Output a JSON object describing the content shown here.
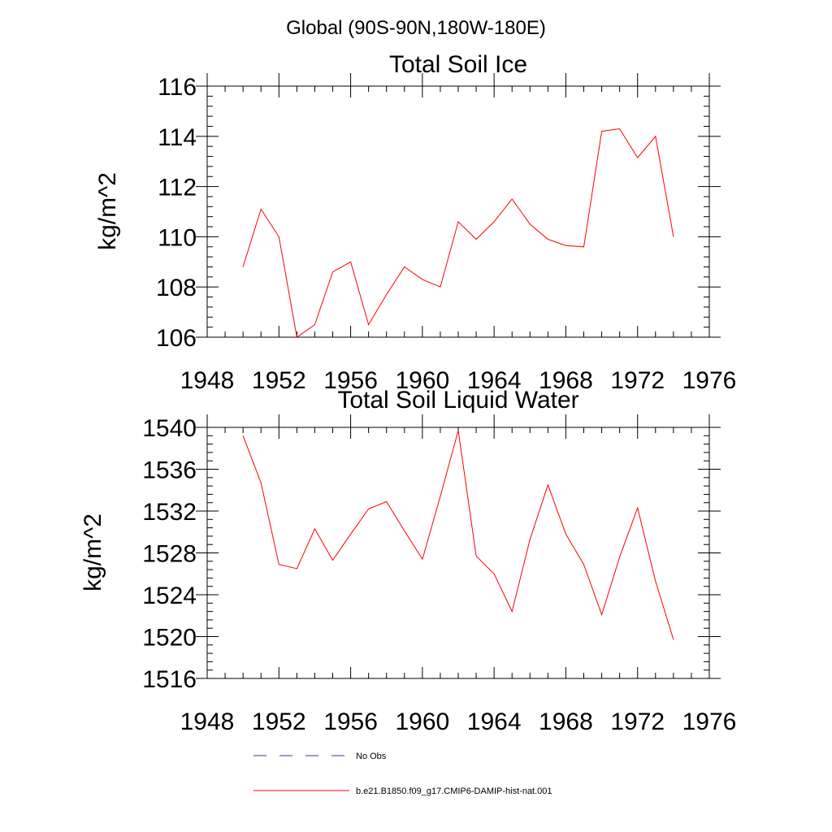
{
  "figure": {
    "suptitle": "Global (90S-90N,180W-180E)"
  },
  "chart_data": [
    {
      "type": "line",
      "title": "Total Soil Ice",
      "xlabel": "",
      "ylabel": "kg/m^2",
      "xlim": [
        1948,
        1976
      ],
      "ylim": [
        106,
        116
      ],
      "xticks": [
        1948,
        1952,
        1956,
        1960,
        1964,
        1968,
        1972,
        1976
      ],
      "yticks": [
        106,
        108,
        110,
        112,
        114,
        116
      ],
      "grid": false,
      "series": [
        {
          "name": "b.e21.B1850.f09_g17.CMIP6-DAMIP-hist-nat.001",
          "color": "#ff0000",
          "x": [
            1950,
            1951,
            1952,
            1953,
            1954,
            1955,
            1956,
            1957,
            1958,
            1959,
            1960,
            1961,
            1962,
            1963,
            1964,
            1965,
            1966,
            1967,
            1968,
            1969,
            1970,
            1971,
            1972,
            1973,
            1974
          ],
          "y": [
            108.8,
            111.1,
            110.0,
            106.0,
            106.5,
            108.6,
            109.0,
            106.5,
            107.7,
            108.8,
            108.3,
            108.0,
            110.6,
            109.9,
            110.6,
            111.5,
            110.5,
            109.9,
            109.65,
            109.6,
            114.2,
            114.3,
            113.15,
            114.0,
            110.0
          ]
        }
      ]
    },
    {
      "type": "line",
      "title": "Total Soil Liquid Water",
      "xlabel": "",
      "ylabel": "kg/m^2",
      "xlim": [
        1948,
        1976
      ],
      "ylim": [
        1516,
        1540
      ],
      "xticks": [
        1948,
        1952,
        1956,
        1960,
        1964,
        1968,
        1972,
        1976
      ],
      "yticks": [
        1516,
        1520,
        1524,
        1528,
        1532,
        1536,
        1540
      ],
      "grid": false,
      "series": [
        {
          "name": "b.e21.B1850.f09_g17.CMIP6-DAMIP-hist-nat.001",
          "color": "#ff0000",
          "x": [
            1950,
            1951,
            1952,
            1953,
            1954,
            1955,
            1956,
            1957,
            1958,
            1959,
            1960,
            1961,
            1962,
            1963,
            1964,
            1965,
            1966,
            1967,
            1968,
            1969,
            1970,
            1971,
            1972,
            1973,
            1974
          ],
          "y": [
            1539.2,
            1534.7,
            1526.9,
            1526.5,
            1530.3,
            1527.3,
            1529.8,
            1532.2,
            1532.9,
            1530.1,
            1527.4,
            1533.4,
            1539.7,
            1527.7,
            1526.0,
            1522.4,
            1529.3,
            1534.5,
            1529.8,
            1526.9,
            1522.1,
            1527.6,
            1532.3,
            1525.3,
            1519.7
          ]
        }
      ]
    }
  ],
  "legend": [
    {
      "label": "No Obs",
      "color": "#2f3f8f",
      "dash": "dashed"
    },
    {
      "label": "b.e21.B1850.f09_g17.CMIP6-DAMIP-hist-nat.001",
      "color": "#ff0000",
      "dash": "solid"
    }
  ]
}
